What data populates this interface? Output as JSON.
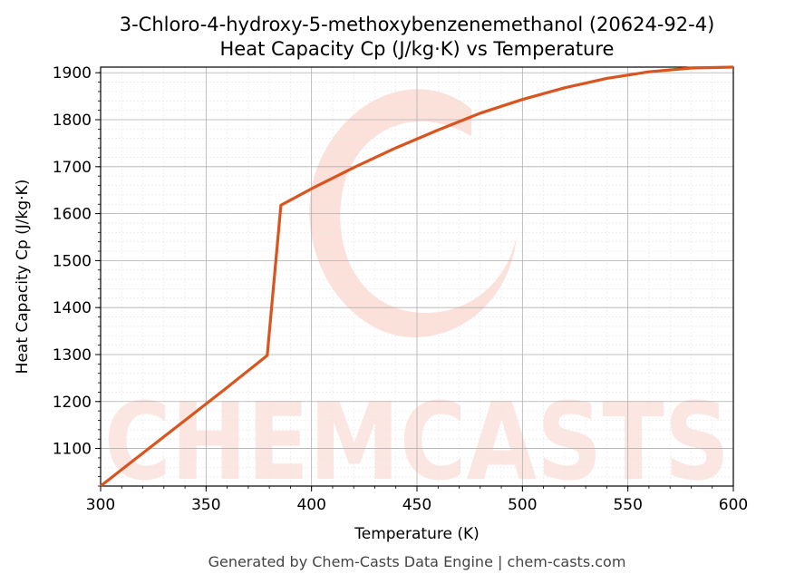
{
  "chart_data": {
    "type": "line",
    "title": "3-Chloro-4-hydroxy-5-methoxybenzenemethanol (20624-92-4)",
    "subtitle": "Heat Capacity Cp (J/kg·K) vs Temperature",
    "xlabel": "Temperature (K)",
    "ylabel": "Heat Capacity Cp (J/kg·K)",
    "xlim": [
      300,
      600
    ],
    "ylim": [
      1020,
      1912
    ],
    "xticks": [
      300,
      350,
      400,
      450,
      500,
      550,
      600
    ],
    "yticks": [
      1100,
      1200,
      1300,
      1400,
      1500,
      1600,
      1700,
      1800,
      1900
    ],
    "grid": "on (major and minor)",
    "line_color": "#d9541e",
    "series": [
      {
        "x": [
          300,
          320,
          340,
          360,
          379,
          385.5,
          400,
          420,
          440,
          460,
          480,
          500,
          520,
          540,
          560,
          580,
          600
        ],
        "y": [
          1020,
          1090,
          1160,
          1230,
          1298,
          1618,
          1653,
          1698,
          1740,
          1778,
          1814,
          1843,
          1868,
          1888,
          1902,
          1910,
          1912
        ]
      }
    ]
  },
  "watermark": "CHEMCASTS",
  "footer": "Generated by Chem-Casts Data Engine | chem-casts.com"
}
